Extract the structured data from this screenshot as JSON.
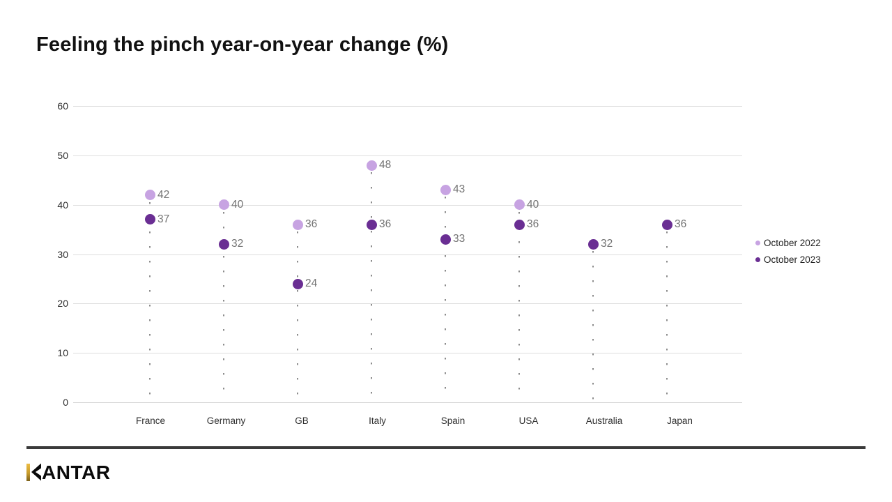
{
  "page": {
    "title": "Feeling the pinch year-on-year change (%)"
  },
  "brand": {
    "name": "KANTAR",
    "logo_rest": "ANTAR",
    "gold_color": "#C79B2C"
  },
  "chart_data": {
    "type": "scatter",
    "title": "Feeling the pinch year-on-year change (%)",
    "categories": [
      "France",
      "Germany",
      "GB",
      "Italy",
      "Spain",
      "USA",
      "Australia",
      "Japan"
    ],
    "series": [
      {
        "name": "October 2022",
        "color": "#c7a3e2",
        "values": [
          42,
          40,
          36,
          48,
          43,
          40,
          null,
          null
        ]
      },
      {
        "name": "October 2023",
        "color": "#6a2e93",
        "values": [
          37,
          32,
          24,
          36,
          33,
          36,
          32,
          36
        ]
      }
    ],
    "ylim": [
      0,
      60
    ],
    "yticks": [
      0,
      10,
      20,
      30,
      40,
      50,
      60
    ],
    "grid": true,
    "value_labels": true,
    "value_label_color": "#737373",
    "legend_position": "right"
  }
}
